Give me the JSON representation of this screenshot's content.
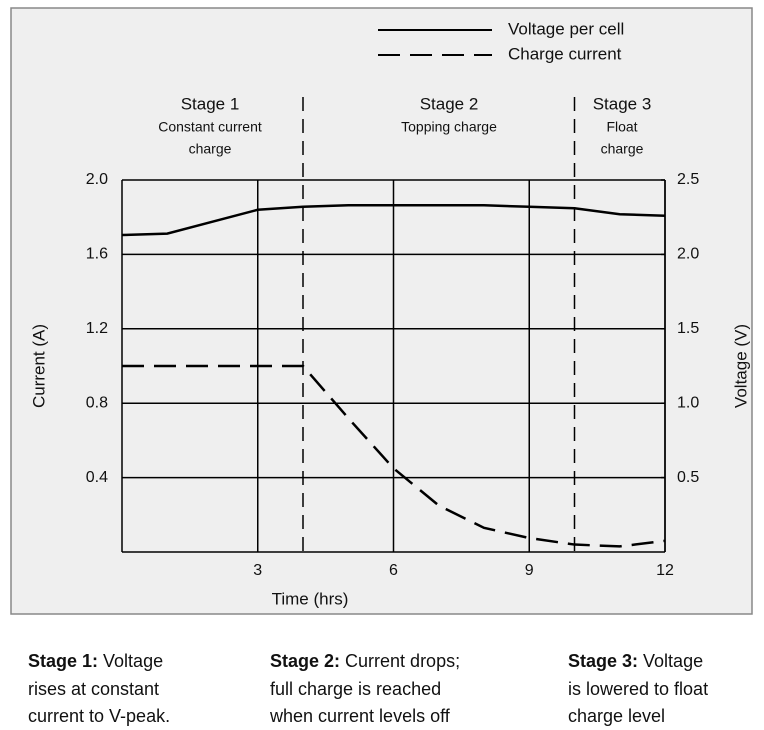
{
  "chart_data": {
    "type": "line",
    "xlabel": "Time (hrs)",
    "ylabel": "Current (A)",
    "y2label": "Voltage (V)",
    "x": [
      0,
      1,
      2,
      3,
      4,
      5,
      6,
      7,
      8,
      9,
      10,
      11,
      12
    ],
    "series": [
      {
        "name": "Voltage per cell",
        "color": "#000000",
        "dash": false,
        "axis": "y2",
        "values": [
          2.13,
          2.14,
          2.22,
          2.3,
          2.32,
          2.33,
          2.33,
          2.33,
          2.33,
          2.32,
          2.31,
          2.27,
          2.26
        ]
      },
      {
        "name": "Charge current",
        "color": "#000000",
        "dash": true,
        "values": [
          1.0,
          1.0,
          1.0,
          1.0,
          1.0,
          0.72,
          0.45,
          0.25,
          0.13,
          0.075,
          0.04,
          0.03,
          0.06
        ]
      }
    ],
    "xlim": [
      0,
      12
    ],
    "xticks": [
      3,
      6,
      9,
      12
    ],
    "ylim": [
      0,
      2
    ],
    "yticks": [
      0.4,
      0.8,
      1.2,
      1.6,
      {
        "value": 2,
        "label": "2.0"
      }
    ],
    "y2lim": [
      0,
      2.5
    ],
    "y2ticks": [
      0.5,
      {
        "value": 1,
        "label": "1.0"
      },
      1.5,
      {
        "value": 2,
        "label": "2.0"
      },
      2.5
    ],
    "grid": true,
    "stage_boundaries": [
      4,
      10
    ],
    "stages": [
      {
        "title": "Stage 1",
        "lines": [
          "Constant current",
          "charge"
        ]
      },
      {
        "title": "Stage 2",
        "lines": [
          "Topping charge"
        ]
      },
      {
        "title": "Stage 3",
        "lines": [
          "Float",
          "charge"
        ]
      }
    ],
    "captions": [
      {
        "bold": "Stage 1:",
        "lines": [
          "Voltage",
          "rises at constant",
          "current to V-peak."
        ]
      },
      {
        "bold": "Stage 2:",
        "lines": [
          "Current drops;",
          "full charge is reached",
          "when current levels off"
        ]
      },
      {
        "bold": "Stage 3:",
        "lines": [
          "Voltage",
          "is lowered to float",
          "charge level"
        ]
      }
    ]
  }
}
